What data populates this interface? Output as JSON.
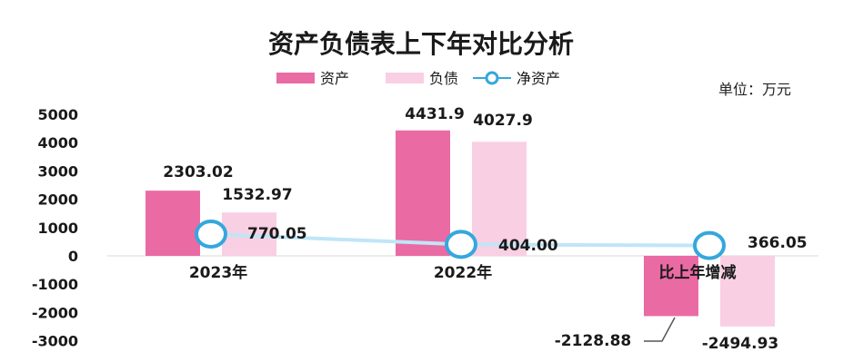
{
  "chart_data": {
    "type": "bar",
    "title": "资产负债表上下年对比分析",
    "unit": "单位：万元",
    "categories": [
      "2023年",
      "2022年",
      "比上年增减"
    ],
    "series": [
      {
        "name": "资产",
        "type": "bar",
        "color": "#ea6aa4",
        "values": [
          2303.02,
          4431.9,
          -2128.88
        ],
        "labels": [
          "2303.02",
          "4431.9",
          "-2128.88"
        ]
      },
      {
        "name": "负债",
        "type": "bar",
        "color": "#f9cfe3",
        "values": [
          1532.97,
          4027.9,
          -2494.93
        ],
        "labels": [
          "1532.97",
          "4027.9",
          "-2494.93"
        ]
      },
      {
        "name": "净资产",
        "type": "line",
        "color": "#35a7dd",
        "values": [
          770.05,
          404.0,
          366.05
        ],
        "labels": [
          "770.05",
          "404.00",
          "366.05"
        ]
      }
    ],
    "yticks": [
      5000,
      4000,
      3000,
      2000,
      1000,
      0,
      -1000,
      -2000,
      -3000
    ],
    "ylim": [
      -3000,
      5000
    ],
    "grid": false,
    "legend_position": "top"
  }
}
